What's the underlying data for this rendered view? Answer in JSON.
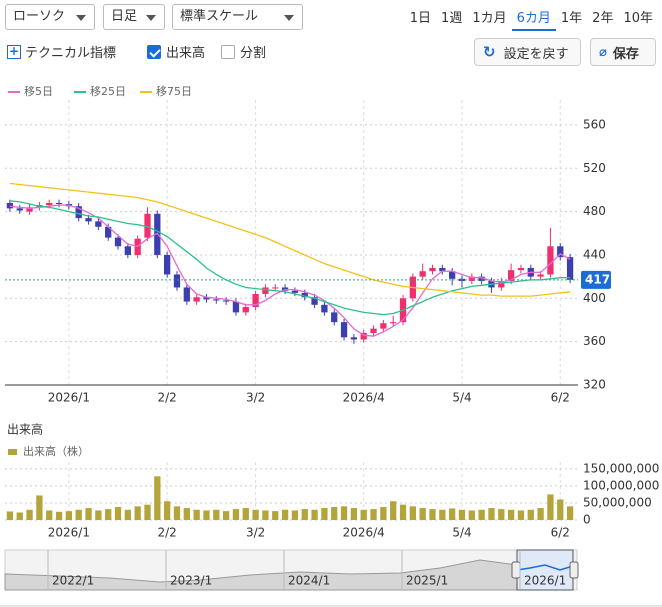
{
  "toolbar": {
    "chart_type": "ローソク",
    "interval": "日足",
    "scale": "標準スケール",
    "periods": [
      "1日",
      "1週",
      "1カ月",
      "6カ月",
      "1年",
      "2年",
      "10年"
    ],
    "selected_period": 3
  },
  "options": {
    "technical": "テクニカル指標",
    "volume": {
      "label": "出来高",
      "checked": true
    },
    "split": {
      "label": "分割",
      "checked": false
    }
  },
  "buttons": {
    "reset": "設定を戻す",
    "save": "保存"
  },
  "chart_data": [
    {
      "type": "candlestick",
      "categories": [
        null,
        null,
        null,
        null,
        null,
        null,
        "2026/1",
        null,
        null,
        null,
        null,
        null,
        null,
        null,
        null,
        null,
        "2/2",
        null,
        null,
        null,
        null,
        null,
        null,
        null,
        null,
        "3/2",
        null,
        null,
        null,
        null,
        null,
        null,
        null,
        null,
        null,
        null,
        "2026/4",
        null,
        null,
        null,
        null,
        null,
        null,
        null,
        null,
        null,
        "5/4",
        null,
        null,
        null,
        null,
        null,
        null,
        null,
        null,
        null,
        "6/2",
        null
      ],
      "open": [
        488,
        483,
        480,
        484,
        486,
        488,
        487,
        485,
        474,
        471,
        466,
        456,
        448,
        440,
        456,
        478,
        440,
        422,
        410,
        397,
        401,
        399,
        398,
        397,
        387,
        392,
        404,
        410,
        410,
        407,
        405,
        401,
        394,
        387,
        378,
        364,
        362,
        368,
        372,
        377,
        378,
        400,
        420,
        425,
        428,
        425,
        418,
        416,
        420,
        416,
        410,
        416,
        426,
        428,
        420,
        422,
        448,
        438
      ],
      "high": [
        491,
        486,
        487,
        489,
        491,
        491,
        490,
        488,
        477,
        474,
        469,
        459,
        451,
        458,
        484,
        481,
        443,
        425,
        413,
        404,
        404,
        402,
        401,
        400,
        395,
        407,
        413,
        413,
        413,
        410,
        408,
        404,
        397,
        390,
        381,
        367,
        371,
        375,
        380,
        384,
        403,
        423,
        432,
        431,
        431,
        428,
        421,
        423,
        423,
        419,
        419,
        432,
        431,
        431,
        425,
        465,
        451,
        441
      ],
      "low": [
        480,
        478,
        477,
        481,
        483,
        484,
        482,
        471,
        468,
        463,
        453,
        445,
        437,
        437,
        453,
        437,
        419,
        407,
        394,
        394,
        396,
        395,
        394,
        384,
        384,
        389,
        401,
        407,
        404,
        402,
        398,
        391,
        384,
        375,
        361,
        358,
        359,
        365,
        369,
        374,
        375,
        397,
        417,
        422,
        422,
        412,
        410,
        413,
        413,
        405,
        407,
        413,
        423,
        417,
        417,
        419,
        435,
        414
      ],
      "close": [
        483,
        481,
        484,
        486,
        488,
        487,
        485,
        474,
        471,
        466,
        456,
        448,
        440,
        455,
        478,
        440,
        422,
        410,
        397,
        401,
        399,
        398,
        397,
        387,
        392,
        404,
        410,
        410,
        407,
        405,
        401,
        394,
        387,
        378,
        364,
        362,
        368,
        372,
        377,
        378,
        400,
        420,
        425,
        428,
        425,
        418,
        416,
        420,
        416,
        410,
        416,
        426,
        428,
        420,
        422,
        448,
        438,
        417
      ],
      "up_color": "#f0306e",
      "down_color": "#3b3fb0",
      "series": [
        {
          "name": "移5日",
          "color": "#e46ad6",
          "values": [
            485,
            484,
            483,
            484,
            485,
            486,
            486,
            483,
            479,
            474,
            466,
            458,
            450,
            448,
            455,
            460,
            448,
            430,
            413,
            404,
            401,
            400,
            399,
            397,
            394,
            394,
            398,
            404,
            408,
            408,
            406,
            403,
            398,
            391,
            382,
            372,
            366,
            365,
            369,
            374,
            380,
            391,
            405,
            418,
            425,
            425,
            422,
            419,
            419,
            416,
            415,
            417,
            422,
            424,
            424,
            432,
            441,
            436
          ]
        },
        {
          "name": "移25日",
          "color": "#2cc08a",
          "values": [
            490,
            489,
            487,
            485,
            484,
            482,
            480,
            478,
            476,
            475,
            473,
            471,
            469,
            468,
            466,
            462,
            457,
            450,
            443,
            436,
            428,
            422,
            417,
            413,
            410,
            409,
            408,
            407,
            406,
            404,
            402,
            400,
            397,
            394,
            391,
            389,
            387,
            386,
            385,
            386,
            389,
            393,
            397,
            401,
            404,
            407,
            409,
            411,
            412,
            413,
            414,
            415,
            416,
            417,
            417,
            418,
            419,
            419
          ]
        },
        {
          "name": "移75日",
          "color": "#f2c21b",
          "values": [
            506,
            505,
            504,
            503,
            502,
            501,
            500,
            499,
            498,
            497,
            496,
            495,
            494,
            493,
            491,
            489,
            486,
            483,
            480,
            477,
            474,
            471,
            468,
            465,
            462,
            459,
            456,
            452,
            448,
            444,
            440,
            436,
            432,
            429,
            426,
            423,
            420,
            417,
            415,
            413,
            411,
            410,
            409,
            408,
            407,
            406,
            405,
            404,
            403,
            403,
            402,
            402,
            402,
            402,
            403,
            404,
            405,
            406
          ]
        }
      ],
      "ylim": [
        320,
        583
      ],
      "yticks": [
        320,
        360,
        400,
        440,
        480,
        520,
        560
      ],
      "grid": true,
      "last_value": 417
    },
    {
      "type": "bar",
      "title": "出来高",
      "categories": [
        null,
        null,
        null,
        null,
        null,
        null,
        "2026/1",
        null,
        null,
        null,
        null,
        null,
        null,
        null,
        null,
        null,
        "2/2",
        null,
        null,
        null,
        null,
        null,
        null,
        null,
        null,
        "3/2",
        null,
        null,
        null,
        null,
        null,
        null,
        null,
        null,
        null,
        null,
        "2026/4",
        null,
        null,
        null,
        null,
        null,
        null,
        null,
        null,
        null,
        "5/4",
        null,
        null,
        null,
        null,
        null,
        null,
        null,
        null,
        null,
        "6/2",
        null
      ],
      "series": [
        {
          "name": "出来高（株）",
          "color": "#b3a53a",
          "values": [
            25000000,
            22000000,
            30000000,
            72000000,
            28000000,
            24000000,
            26000000,
            30000000,
            35000000,
            28000000,
            32000000,
            38000000,
            30000000,
            40000000,
            45000000,
            128000000,
            55000000,
            40000000,
            35000000,
            30000000,
            28000000,
            30000000,
            26000000,
            32000000,
            35000000,
            30000000,
            28000000,
            26000000,
            30000000,
            28000000,
            32000000,
            30000000,
            35000000,
            38000000,
            40000000,
            35000000,
            30000000,
            32000000,
            38000000,
            55000000,
            45000000,
            40000000,
            35000000,
            32000000,
            30000000,
            34000000,
            30000000,
            28000000,
            30000000,
            35000000,
            32000000,
            30000000,
            28000000,
            30000000,
            35000000,
            75000000,
            60000000,
            40000000
          ]
        }
      ],
      "ylim": [
        0,
        170000000
      ],
      "yticks": [
        0,
        {
          "value": 50000000,
          "label": "50,000,000"
        },
        {
          "value": 100000000,
          "label": "100,000,000"
        },
        {
          "value": 150000000,
          "label": "150,000,000"
        }
      ],
      "grid": true
    }
  ],
  "navigator": {
    "labels": [
      "2022/1",
      "2023/1",
      "2024/1",
      "2025/1",
      "2026/1"
    ]
  }
}
